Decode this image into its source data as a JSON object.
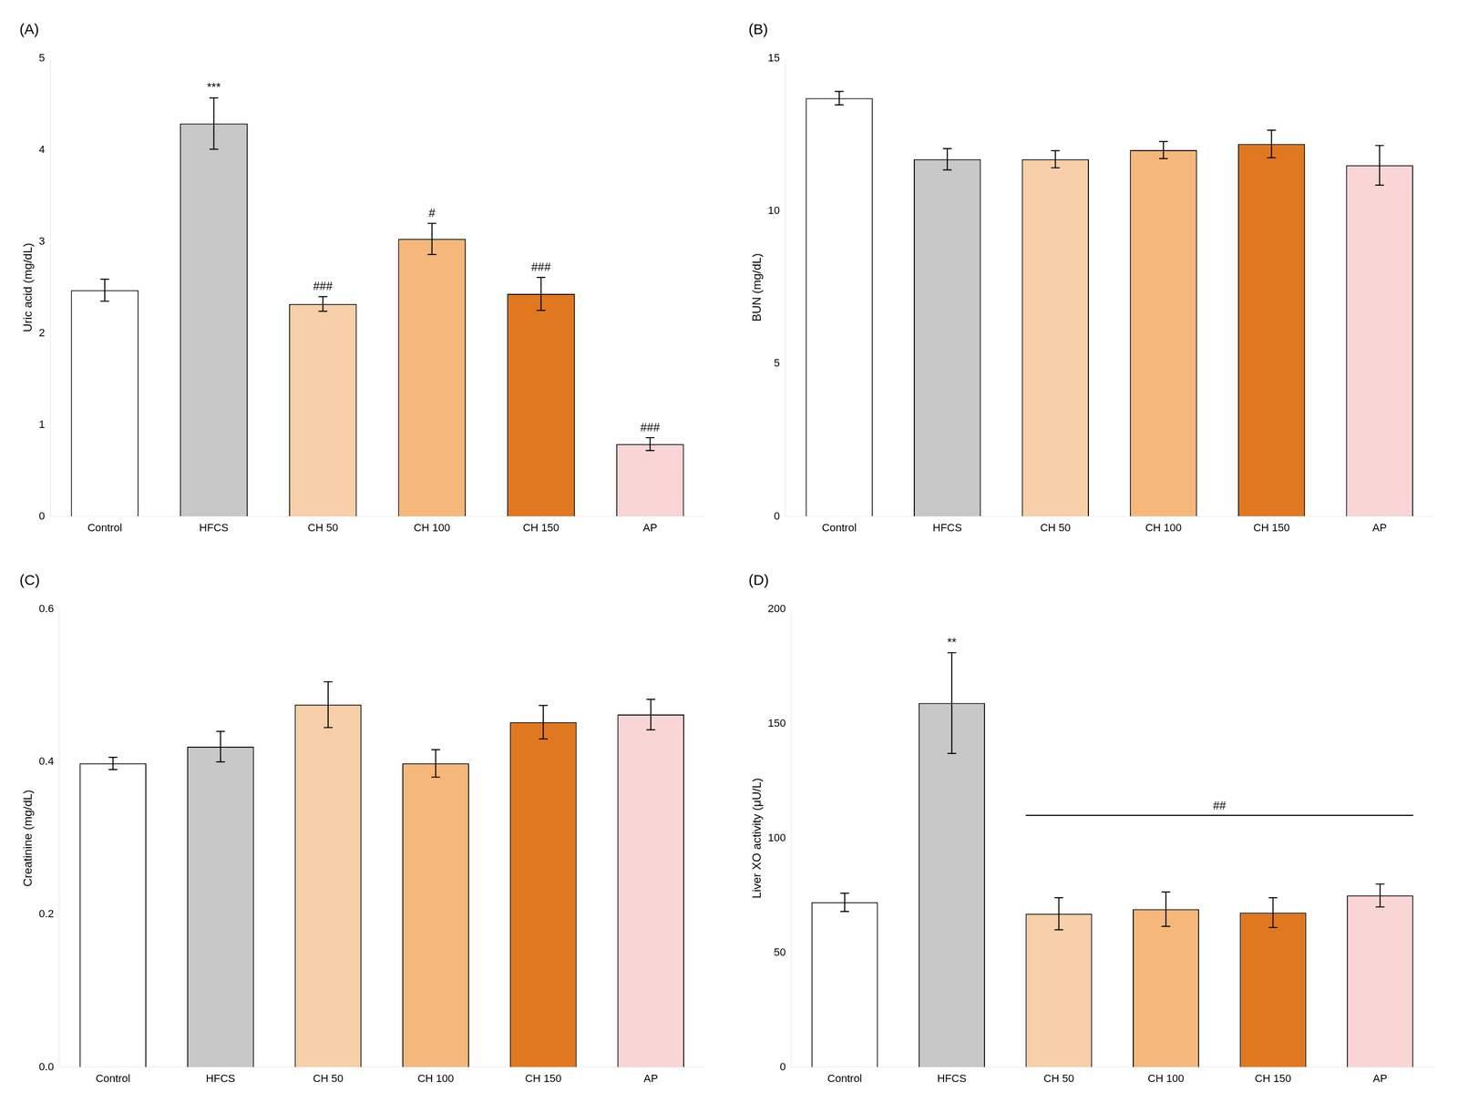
{
  "chart_data": [
    {
      "type": "bar",
      "title": "(A)",
      "ylabel": "Uric acid (mg/dL)",
      "categories": [
        "Control",
        "HFCS",
        "CH 50",
        "CH 100",
        "CH 150",
        "AP"
      ],
      "values": [
        2.47,
        4.29,
        2.32,
        3.03,
        2.43,
        0.79
      ],
      "errors": [
        0.12,
        0.28,
        0.08,
        0.17,
        0.18,
        0.07
      ],
      "colors": [
        "#ffffff",
        "#c8c8c8",
        "#f7cfa8",
        "#f5b87a",
        "#e07820",
        "#f9d5d5"
      ],
      "ylim": [
        0,
        5
      ],
      "yticks": [
        0,
        1,
        2,
        3,
        4,
        5
      ],
      "grid": false,
      "annotations": [
        {
          "category": "HFCS",
          "text": "***"
        },
        {
          "category": "CH 50",
          "text": "###"
        },
        {
          "category": "CH 100",
          "text": "#"
        },
        {
          "category": "CH 150",
          "text": "###"
        },
        {
          "category": "AP",
          "text": "###"
        }
      ]
    },
    {
      "type": "bar",
      "title": "(B)",
      "ylabel": "BUN (mg/dL)",
      "categories": [
        "Control",
        "HFCS",
        "CH 50",
        "CH 100",
        "CH 150",
        "AP"
      ],
      "values": [
        13.7,
        11.7,
        11.7,
        12.0,
        12.2,
        11.5
      ],
      "errors": [
        0.22,
        0.35,
        0.28,
        0.28,
        0.45,
        0.65
      ],
      "colors": [
        "#ffffff",
        "#c8c8c8",
        "#f7cfa8",
        "#f5b87a",
        "#e07820",
        "#f9d5d5"
      ],
      "ylim": [
        0,
        15
      ],
      "yticks": [
        0,
        5,
        10,
        15
      ],
      "grid": false
    },
    {
      "type": "bar",
      "title": "(C)",
      "ylabel": "Creatinine (mg/dL)",
      "categories": [
        "Control",
        "HFCS",
        "CH 50",
        "CH 100",
        "CH 150",
        "AP"
      ],
      "values": [
        0.398,
        0.42,
        0.475,
        0.398,
        0.452,
        0.462
      ],
      "errors": [
        0.008,
        0.02,
        0.03,
        0.018,
        0.022,
        0.02
      ],
      "colors": [
        "#ffffff",
        "#c8c8c8",
        "#f7cfa8",
        "#f5b87a",
        "#e07820",
        "#f9d5d5"
      ],
      "ylim": [
        0.0,
        0.6
      ],
      "yticks": [
        {
          "value": 0,
          "label": "0.0"
        },
        0.2,
        0.4,
        0.6
      ],
      "grid": false
    },
    {
      "type": "bar",
      "title": "(D)",
      "ylabel": "Liver XO activity (μU/L)",
      "categories": [
        "Control",
        "HFCS",
        "CH 50",
        "CH 100",
        "CH 150",
        "AP"
      ],
      "values": [
        72.0,
        159.0,
        67.0,
        69.0,
        67.5,
        75.0
      ],
      "errors": [
        4.0,
        22.0,
        7.0,
        7.5,
        6.5,
        5.0
      ],
      "colors": [
        "#ffffff",
        "#c8c8c8",
        "#f7cfa8",
        "#f5b87a",
        "#e07820",
        "#f9d5d5"
      ],
      "ylim": [
        0,
        200
      ],
      "yticks": [
        0,
        50,
        100,
        150,
        200
      ],
      "grid": false,
      "annotations": [
        {
          "category": "HFCS",
          "text": "**"
        }
      ],
      "bracket": {
        "from": "CH 50",
        "to": "AP",
        "y": 110,
        "text": "##"
      }
    }
  ]
}
